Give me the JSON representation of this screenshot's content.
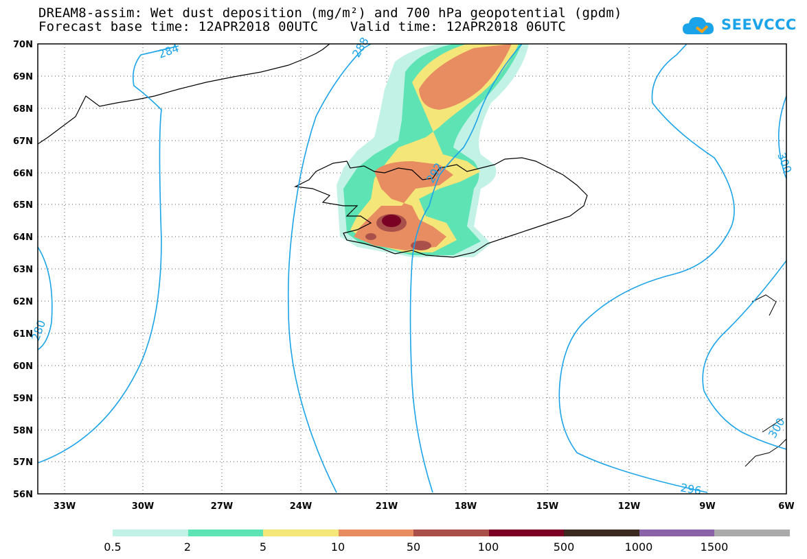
{
  "title": {
    "line1": "DREAM8-assim: Wet dust deposition (mg/m²) and 700 hPa geopotential (gpdm)",
    "line2": "Forecast base time: 12APR2018 00UTC    Valid time: 12APR2018 06UTC"
  },
  "logo": {
    "text": "SEEVCCC",
    "icon": "cloud-icon",
    "color": "#1aa3e8"
  },
  "axes": {
    "lat_labels": [
      "70N",
      "69N",
      "68N",
      "67N",
      "66N",
      "65N",
      "64N",
      "63N",
      "62N",
      "61N",
      "60N",
      "59N",
      "58N",
      "57N",
      "56N"
    ],
    "lon_labels": [
      "33W",
      "30W",
      "27W",
      "24W",
      "21W",
      "18W",
      "15W",
      "12W",
      "9W",
      "6W"
    ]
  },
  "contour_labels": [
    "284",
    "288",
    "292",
    "296",
    "300",
    "280",
    "300"
  ],
  "colorbar": {
    "labels": [
      "0.5",
      "2",
      "5",
      "10",
      "50",
      "100",
      "500",
      "1000",
      "1500"
    ],
    "colors": [
      "#c2f2e6",
      "#5ee3b4",
      "#f5e67a",
      "#e88c62",
      "#a9504a",
      "#7a0024",
      "#3a2a20",
      "#8a62a8",
      "#aaaaaa"
    ]
  },
  "colors": {
    "contour": "#1aa3e8",
    "frame": "#000000",
    "grid": "#555555"
  }
}
